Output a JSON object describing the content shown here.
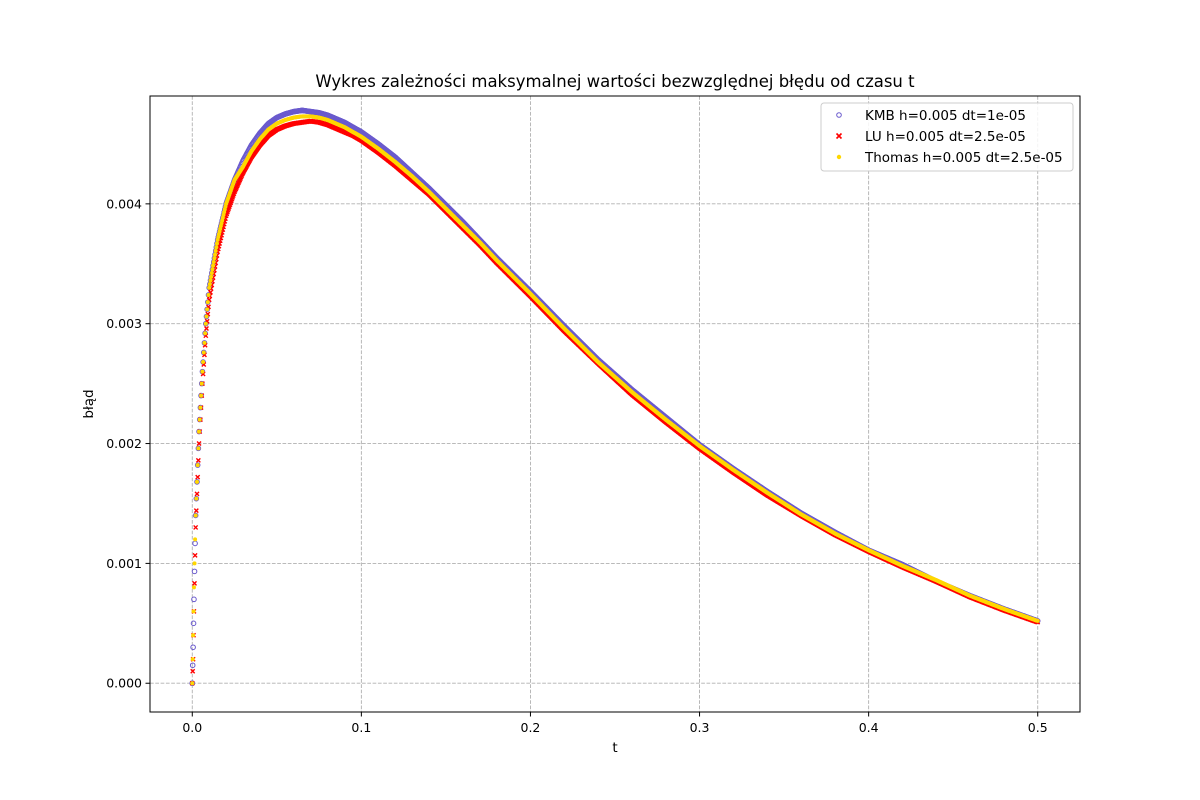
{
  "chart_data": {
    "type": "scatter",
    "title": "Wykres zależności maksymalnej wartości bezwzględnej błędu od czasu t",
    "xlabel": "t",
    "ylabel": "błąd",
    "xlim": [
      -0.025,
      0.525
    ],
    "ylim": [
      -0.00024,
      0.0049
    ],
    "x_ticks": [
      0.0,
      0.1,
      0.2,
      0.3,
      0.4,
      0.5
    ],
    "x_tick_labels": [
      "0.0",
      "0.1",
      "0.2",
      "0.3",
      "0.4",
      "0.5"
    ],
    "y_ticks": [
      0.0,
      0.001,
      0.002,
      0.003,
      0.004
    ],
    "y_tick_labels": [
      "0.000",
      "0.001",
      "0.002",
      "0.003",
      "0.004"
    ],
    "grid": true,
    "legend_position": "top-right",
    "series": [
      {
        "name": "KMB h=0.005 dt=1e-05",
        "marker": "circle",
        "color": "#6a5acd",
        "x": [
          0.0,
          0.0005,
          0.001,
          0.002,
          0.004,
          0.006,
          0.008,
          0.01,
          0.015,
          0.02,
          0.025,
          0.03,
          0.035,
          0.04,
          0.045,
          0.05,
          0.055,
          0.06,
          0.065,
          0.07,
          0.075,
          0.08,
          0.085,
          0.09,
          0.095,
          0.1,
          0.11,
          0.12,
          0.13,
          0.14,
          0.15,
          0.16,
          0.17,
          0.18,
          0.19,
          0.2,
          0.22,
          0.24,
          0.26,
          0.28,
          0.3,
          0.32,
          0.34,
          0.36,
          0.38,
          0.4,
          0.42,
          0.44,
          0.46,
          0.48,
          0.5
        ],
        "y": [
          0.0,
          0.0003,
          0.0007,
          0.0014,
          0.0021,
          0.0026,
          0.003,
          0.0033,
          0.0037,
          0.004,
          0.0042,
          0.00436,
          0.00449,
          0.00459,
          0.00467,
          0.00472,
          0.00475,
          0.00477,
          0.00478,
          0.00477,
          0.00476,
          0.00474,
          0.00471,
          0.00468,
          0.00464,
          0.0046,
          0.0045,
          0.00439,
          0.00426,
          0.00413,
          0.00399,
          0.00385,
          0.0037,
          0.00355,
          0.00341,
          0.00327,
          0.00298,
          0.0027,
          0.00245,
          0.00222,
          0.00199,
          0.00179,
          0.0016,
          0.00142,
          0.00126,
          0.00111,
          0.00099,
          0.00085,
          0.00073,
          0.00062,
          0.00052
        ]
      },
      {
        "name": "LU h=0.005 dt=2.5e-05",
        "marker": "x",
        "color": "#ff0000",
        "x": [
          0.0,
          0.0005,
          0.001,
          0.002,
          0.004,
          0.006,
          0.008,
          0.01,
          0.015,
          0.02,
          0.025,
          0.03,
          0.035,
          0.04,
          0.045,
          0.05,
          0.055,
          0.06,
          0.065,
          0.07,
          0.075,
          0.08,
          0.085,
          0.09,
          0.095,
          0.1,
          0.11,
          0.12,
          0.13,
          0.14,
          0.15,
          0.16,
          0.17,
          0.18,
          0.19,
          0.2,
          0.22,
          0.24,
          0.26,
          0.28,
          0.3,
          0.32,
          0.34,
          0.36,
          0.38,
          0.4,
          0.42,
          0.44,
          0.46,
          0.48,
          0.5
        ],
        "y": [
          0.0,
          0.0002,
          0.0006,
          0.0013,
          0.002,
          0.0025,
          0.0029,
          0.0032,
          0.0036,
          0.0039,
          0.0041,
          0.00426,
          0.00439,
          0.00449,
          0.00457,
          0.00462,
          0.00465,
          0.00467,
          0.00468,
          0.00469,
          0.00468,
          0.00466,
          0.00463,
          0.0046,
          0.00457,
          0.00453,
          0.00443,
          0.00432,
          0.0042,
          0.00408,
          0.00394,
          0.0038,
          0.00366,
          0.00351,
          0.00337,
          0.00323,
          0.00294,
          0.00267,
          0.00241,
          0.00218,
          0.00196,
          0.00176,
          0.00157,
          0.0014,
          0.00124,
          0.0011,
          0.00097,
          0.00085,
          0.00072,
          0.00061,
          0.00051
        ]
      },
      {
        "name": "Thomas h=0.005 dt=2.5e-05",
        "marker": "point",
        "color": "#ffd700",
        "x": [
          0.0,
          0.0005,
          0.001,
          0.002,
          0.004,
          0.006,
          0.008,
          0.01,
          0.015,
          0.02,
          0.025,
          0.03,
          0.035,
          0.04,
          0.045,
          0.05,
          0.055,
          0.06,
          0.065,
          0.07,
          0.075,
          0.08,
          0.085,
          0.09,
          0.095,
          0.1,
          0.11,
          0.12,
          0.13,
          0.14,
          0.15,
          0.16,
          0.17,
          0.18,
          0.19,
          0.2,
          0.22,
          0.24,
          0.26,
          0.28,
          0.3,
          0.32,
          0.34,
          0.36,
          0.38,
          0.4,
          0.42,
          0.44,
          0.46,
          0.48,
          0.5
        ],
        "y": [
          0.0,
          0.0004,
          0.0008,
          0.0014,
          0.0021,
          0.0026,
          0.003,
          0.0033,
          0.0037,
          0.004,
          0.0042,
          0.00431,
          0.00444,
          0.00454,
          0.00462,
          0.00467,
          0.0047,
          0.00472,
          0.00473,
          0.00473,
          0.00472,
          0.0047,
          0.00467,
          0.00464,
          0.0046,
          0.00456,
          0.00446,
          0.00435,
          0.00423,
          0.0041,
          0.00396,
          0.00382,
          0.00368,
          0.00353,
          0.00339,
          0.00325,
          0.00296,
          0.00268,
          0.00243,
          0.0022,
          0.00198,
          0.00178,
          0.00159,
          0.00141,
          0.00125,
          0.00111,
          0.00098,
          0.00086,
          0.00073,
          0.00062,
          0.00052
        ]
      }
    ]
  }
}
